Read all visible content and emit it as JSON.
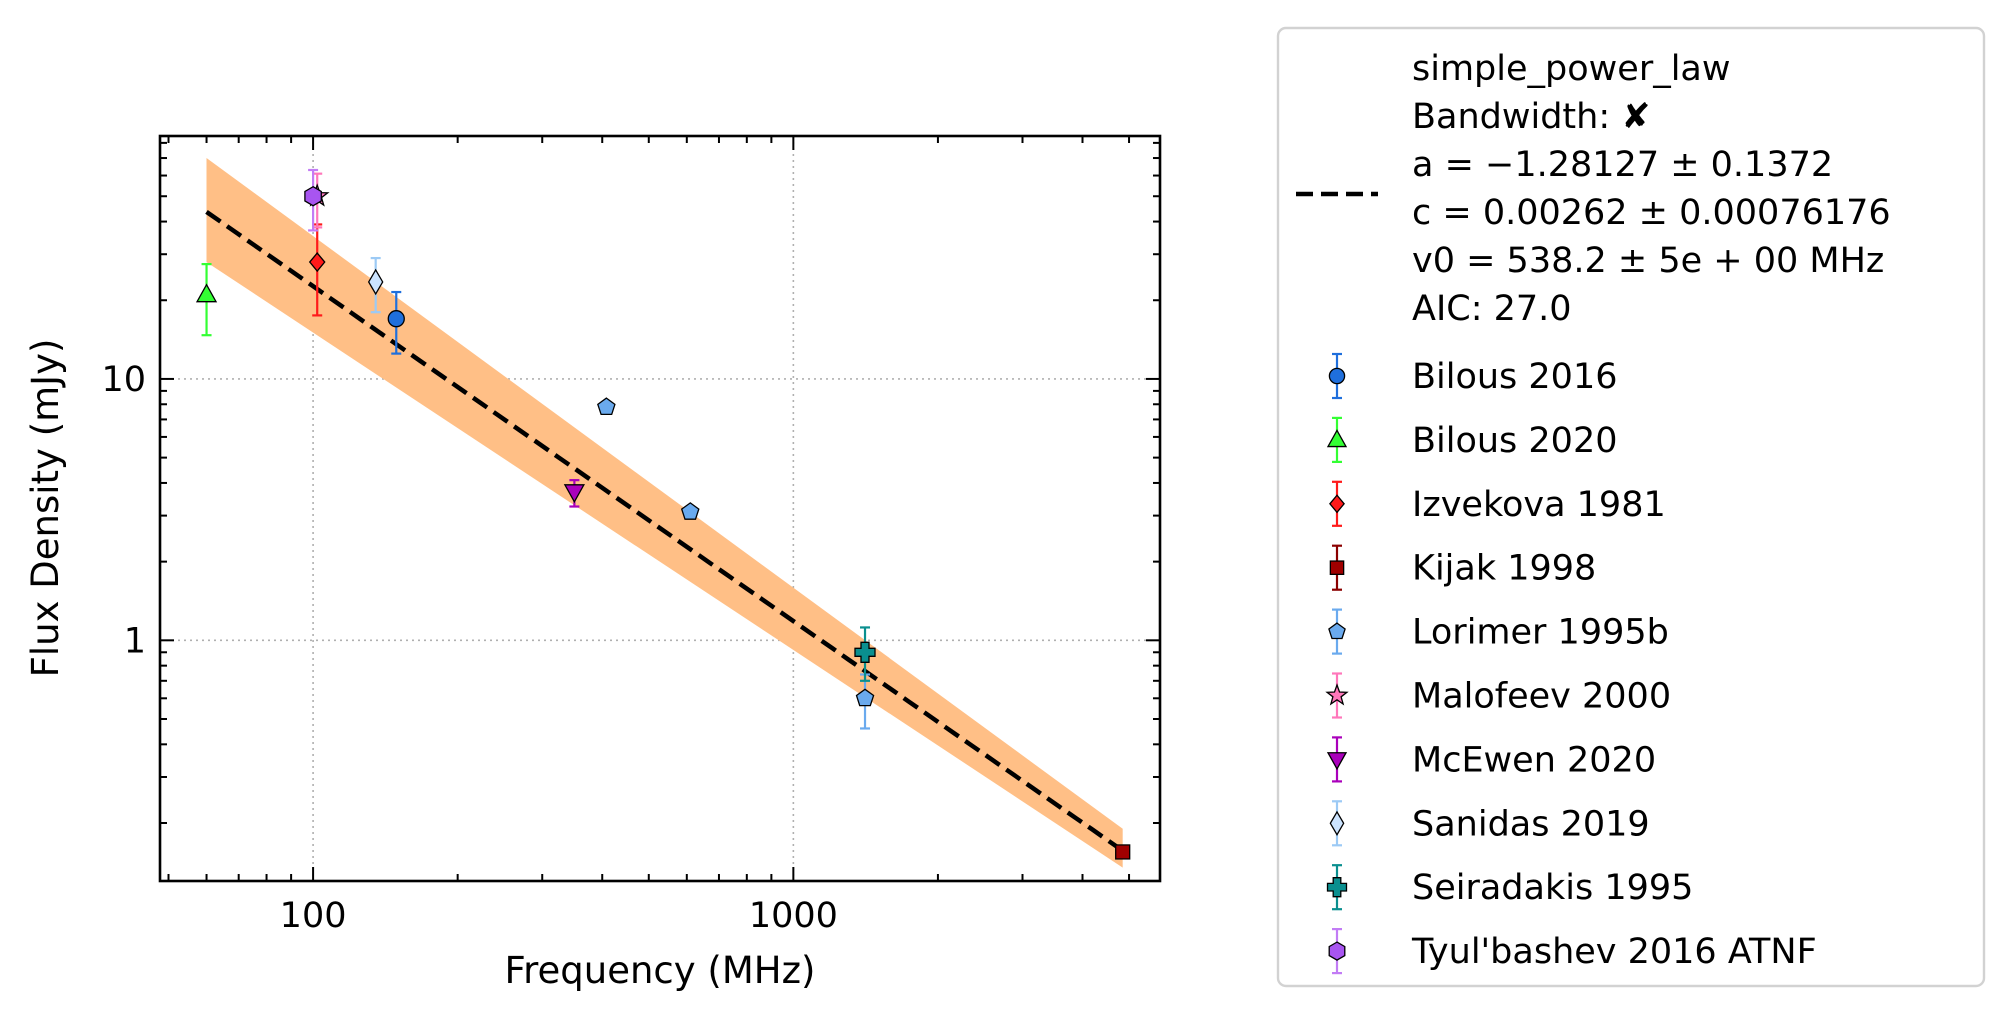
{
  "chart_data": {
    "type": "scatter",
    "title": "",
    "xlabel": "Frequency (MHz)",
    "ylabel": "Flux Density (mJy)",
    "xscale": "log",
    "yscale": "log",
    "xlim": [
      48,
      5800
    ],
    "ylim": [
      0.12,
      85
    ],
    "grid": true,
    "legend_position": "outside-right",
    "x_ticks": [
      {
        "value": 100,
        "label": "100"
      },
      {
        "value": 1000,
        "label": "1000"
      }
    ],
    "y_ticks": [
      {
        "value": 1,
        "label": "1"
      },
      {
        "value": 10,
        "label": "10"
      }
    ],
    "fit": {
      "model": "simple_power_law",
      "lines": [
        "simple_power_law",
        "Bandwidth: ✘",
        "a = −1.28127 ± 0.1372",
        "c = 0.00262 ± 0.00076176",
        "v0 = 538.2 ± 5e + 00 MHz",
        "AIC: 27.0"
      ],
      "a": -1.28127,
      "c": 0.00262,
      "v0": 538.2,
      "x_range": [
        60,
        4850
      ],
      "band_upper": [
        [
          60,
          70
        ],
        [
          4850,
          0.19
        ]
      ],
      "band_lower": [
        [
          60,
          28
        ],
        [
          4850,
          0.135
        ]
      ],
      "line_color": "#000000",
      "band_color": "#ffbf86"
    },
    "series": [
      {
        "name": "Bilous 2016",
        "marker": "circle",
        "color": "#1f6fdc",
        "err_color": "#1f6fdc",
        "points": [
          {
            "x": 149,
            "y": 17,
            "lo": 12.5,
            "hi": 21.5
          }
        ]
      },
      {
        "name": "Bilous 2020",
        "marker": "triangle-up",
        "color": "#33ff33",
        "err_color": "#33ff33",
        "points": [
          {
            "x": 60,
            "y": 21,
            "lo": 14.7,
            "hi": 27.5
          }
        ]
      },
      {
        "name": "Izvekova 1981",
        "marker": "diamond",
        "color": "#ff1a1a",
        "err_color": "#ff1a1a",
        "points": [
          {
            "x": 102,
            "y": 28,
            "lo": 17.5,
            "hi": 39
          }
        ]
      },
      {
        "name": "Kijak 1998",
        "marker": "square",
        "color": "#a00000",
        "err_color": "#8b0000",
        "points": [
          {
            "x": 4850,
            "y": 0.155
          }
        ]
      },
      {
        "name": "Lorimer 1995b",
        "marker": "pentagon",
        "color": "#6aaaee",
        "err_color": "#6aaaee",
        "points": [
          {
            "x": 408,
            "y": 7.8
          },
          {
            "x": 610,
            "y": 3.1
          },
          {
            "x": 1410,
            "y": 0.6,
            "lo": 0.46,
            "hi": 0.74
          }
        ]
      },
      {
        "name": "Malofeev 2000",
        "marker": "star",
        "color": "#ff77bb",
        "err_color": "#ff77bb",
        "points": [
          {
            "x": 102,
            "y": 50,
            "lo": 38,
            "hi": 61
          }
        ]
      },
      {
        "name": "McEwen 2020",
        "marker": "triangle-down",
        "color": "#aa00bb",
        "err_color": "#aa00bb",
        "points": [
          {
            "x": 350,
            "y": 3.7,
            "lo": 3.25,
            "hi": 4.1
          }
        ]
      },
      {
        "name": "Sanidas 2019",
        "marker": "thin-diamond",
        "color": "#cce4ff",
        "err_color": "#9ccaf5",
        "points": [
          {
            "x": 135,
            "y": 23.5,
            "lo": 18,
            "hi": 29
          }
        ]
      },
      {
        "name": "Seiradakis 1995",
        "marker": "plus",
        "color": "#0a8f8f",
        "err_color": "#0a8f8f",
        "points": [
          {
            "x": 1410,
            "y": 0.9,
            "lo": 0.7,
            "hi": 1.12
          }
        ]
      },
      {
        "name": "Tyul'bashev 2016 ATNF",
        "marker": "hexagon",
        "color": "#a855f0",
        "err_color": "#c27cf5",
        "points": [
          {
            "x": 100,
            "y": 50,
            "lo": 37,
            "hi": 63
          }
        ]
      }
    ]
  }
}
